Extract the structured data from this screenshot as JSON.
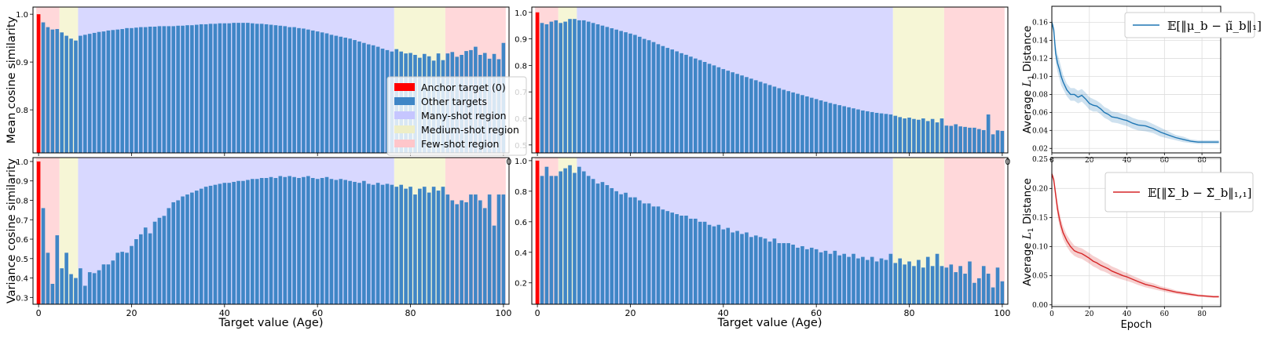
{
  "colors": {
    "bar": "#3f86c6",
    "anchor": "#ff0000",
    "many_shot": "#d8d8ff",
    "medium_shot": "#f6f6d6",
    "few_shot": "#ffd8da",
    "mean_line": "#1f77b4",
    "var_line": "#d62728"
  },
  "chart_data": [
    {
      "id": "mean-age",
      "type": "bar",
      "ylabel": "Mean cosine similarity",
      "xlabel": "",
      "ylim": [
        0.71,
        1.015
      ],
      "yticks": [
        0.8,
        0.9,
        1.0
      ],
      "xticks": [
        0,
        20,
        40,
        60,
        80,
        100
      ],
      "regions": [
        {
          "kind": "few",
          "from": -0.5,
          "to": 4.5
        },
        {
          "kind": "medium",
          "from": 4.5,
          "to": 8.5
        },
        {
          "kind": "many",
          "from": 8.5,
          "to": 76.5
        },
        {
          "kind": "medium",
          "from": 76.5,
          "to": 87.5
        },
        {
          "kind": "few",
          "from": 87.5,
          "to": 100.5
        }
      ],
      "values": [
        1.0,
        0.983,
        0.973,
        0.968,
        0.969,
        0.962,
        0.955,
        0.949,
        0.945,
        0.955,
        0.957,
        0.959,
        0.961,
        0.963,
        0.964,
        0.966,
        0.967,
        0.968,
        0.969,
        0.971,
        0.971,
        0.972,
        0.973,
        0.973,
        0.974,
        0.974,
        0.975,
        0.975,
        0.975,
        0.975,
        0.976,
        0.976,
        0.977,
        0.977,
        0.978,
        0.979,
        0.979,
        0.98,
        0.98,
        0.981,
        0.981,
        0.981,
        0.982,
        0.982,
        0.982,
        0.982,
        0.981,
        0.98,
        0.98,
        0.979,
        0.978,
        0.977,
        0.976,
        0.975,
        0.973,
        0.973,
        0.971,
        0.97,
        0.968,
        0.966,
        0.964,
        0.962,
        0.96,
        0.957,
        0.955,
        0.953,
        0.951,
        0.949,
        0.946,
        0.943,
        0.94,
        0.937,
        0.935,
        0.932,
        0.928,
        0.925,
        0.922,
        0.927,
        0.922,
        0.918,
        0.919,
        0.915,
        0.909,
        0.917,
        0.912,
        0.903,
        0.918,
        0.904,
        0.918,
        0.921,
        0.911,
        0.915,
        0.923,
        0.925,
        0.932,
        0.915,
        0.919,
        0.907,
        0.917,
        0.906,
        0.94
      ]
    },
    {
      "id": "mean-age-2",
      "type": "bar",
      "ylabel": "",
      "xlabel": "",
      "ylim": [
        0.47,
        1.02
      ],
      "yticks": [
        0.5,
        0.6,
        0.7,
        0.8,
        0.9,
        1.0
      ],
      "xticks": [
        0,
        20,
        40,
        60,
        80,
        100
      ],
      "regions": [
        {
          "kind": "few",
          "from": -0.5,
          "to": 4.5
        },
        {
          "kind": "medium",
          "from": 4.5,
          "to": 8.5
        },
        {
          "kind": "many",
          "from": 8.5,
          "to": 76.5
        },
        {
          "kind": "medium",
          "from": 76.5,
          "to": 87.5
        },
        {
          "kind": "few",
          "from": 87.5,
          "to": 100.5
        }
      ],
      "values": [
        1.0,
        0.96,
        0.955,
        0.965,
        0.97,
        0.96,
        0.965,
        0.975,
        0.975,
        0.97,
        0.97,
        0.965,
        0.96,
        0.955,
        0.95,
        0.945,
        0.94,
        0.935,
        0.93,
        0.925,
        0.92,
        0.915,
        0.908,
        0.9,
        0.895,
        0.888,
        0.88,
        0.873,
        0.866,
        0.86,
        0.853,
        0.846,
        0.84,
        0.833,
        0.826,
        0.82,
        0.813,
        0.806,
        0.8,
        0.793,
        0.786,
        0.78,
        0.774,
        0.768,
        0.762,
        0.756,
        0.75,
        0.744,
        0.738,
        0.732,
        0.726,
        0.72,
        0.714,
        0.708,
        0.703,
        0.698,
        0.693,
        0.688,
        0.683,
        0.678,
        0.673,
        0.668,
        0.663,
        0.658,
        0.654,
        0.65,
        0.646,
        0.642,
        0.638,
        0.634,
        0.63,
        0.627,
        0.624,
        0.621,
        0.619,
        0.617,
        0.615,
        0.61,
        0.605,
        0.6,
        0.603,
        0.598,
        0.595,
        0.6,
        0.59,
        0.598,
        0.585,
        0.6,
        0.573,
        0.572,
        0.578,
        0.57,
        0.568,
        0.565,
        0.565,
        0.56,
        0.556,
        0.615,
        0.54,
        0.555,
        0.553
      ]
    },
    {
      "id": "var-age",
      "type": "bar",
      "ylabel": "Variance cosine similarity",
      "xlabel": "Target value (Age)",
      "ylim": [
        0.265,
        1.02
      ],
      "yticks": [
        0.3,
        0.4,
        0.5,
        0.6,
        0.7,
        0.8,
        0.9,
        1.0
      ],
      "xticks": [
        0,
        20,
        40,
        60,
        80,
        100
      ],
      "regions": [
        {
          "kind": "few",
          "from": -0.5,
          "to": 4.5
        },
        {
          "kind": "medium",
          "from": 4.5,
          "to": 8.5
        },
        {
          "kind": "many",
          "from": 8.5,
          "to": 76.5
        },
        {
          "kind": "medium",
          "from": 76.5,
          "to": 87.5
        },
        {
          "kind": "few",
          "from": 87.5,
          "to": 100.5
        }
      ],
      "values": [
        1.0,
        0.76,
        0.53,
        0.37,
        0.62,
        0.45,
        0.53,
        0.42,
        0.4,
        0.45,
        0.36,
        0.43,
        0.425,
        0.44,
        0.47,
        0.47,
        0.49,
        0.53,
        0.535,
        0.53,
        0.565,
        0.6,
        0.625,
        0.66,
        0.63,
        0.69,
        0.71,
        0.72,
        0.76,
        0.79,
        0.8,
        0.82,
        0.83,
        0.84,
        0.85,
        0.86,
        0.87,
        0.875,
        0.88,
        0.885,
        0.89,
        0.89,
        0.895,
        0.9,
        0.9,
        0.905,
        0.91,
        0.91,
        0.915,
        0.915,
        0.92,
        0.915,
        0.925,
        0.92,
        0.925,
        0.92,
        0.915,
        0.92,
        0.925,
        0.915,
        0.91,
        0.915,
        0.92,
        0.91,
        0.905,
        0.91,
        0.905,
        0.9,
        0.895,
        0.89,
        0.9,
        0.885,
        0.88,
        0.89,
        0.88,
        0.885,
        0.88,
        0.87,
        0.88,
        0.86,
        0.87,
        0.83,
        0.86,
        0.87,
        0.84,
        0.87,
        0.85,
        0.87,
        0.83,
        0.8,
        0.78,
        0.8,
        0.79,
        0.83,
        0.83,
        0.8,
        0.76,
        0.83,
        0.67,
        0.83,
        0.83
      ]
    },
    {
      "id": "var-age-2",
      "type": "bar",
      "ylabel": "",
      "xlabel": "Target value (Age)",
      "ylim": [
        0.06,
        1.02
      ],
      "yticks": [
        0.2,
        0.4,
        0.6,
        0.8,
        1.0
      ],
      "xticks": [
        0,
        20,
        40,
        60,
        80,
        100
      ],
      "regions": [
        {
          "kind": "few",
          "from": -0.5,
          "to": 4.5
        },
        {
          "kind": "medium",
          "from": 4.5,
          "to": 8.5
        },
        {
          "kind": "many",
          "from": 8.5,
          "to": 76.5
        },
        {
          "kind": "medium",
          "from": 76.5,
          "to": 87.5
        },
        {
          "kind": "few",
          "from": 87.5,
          "to": 100.5
        }
      ],
      "values": [
        1.0,
        0.9,
        0.96,
        0.9,
        0.9,
        0.93,
        0.95,
        0.97,
        0.92,
        0.96,
        0.93,
        0.9,
        0.88,
        0.85,
        0.86,
        0.84,
        0.82,
        0.8,
        0.78,
        0.79,
        0.76,
        0.76,
        0.74,
        0.72,
        0.72,
        0.7,
        0.7,
        0.68,
        0.67,
        0.66,
        0.65,
        0.64,
        0.64,
        0.62,
        0.62,
        0.6,
        0.6,
        0.58,
        0.57,
        0.58,
        0.55,
        0.56,
        0.53,
        0.54,
        0.52,
        0.53,
        0.5,
        0.51,
        0.5,
        0.49,
        0.47,
        0.49,
        0.46,
        0.46,
        0.46,
        0.45,
        0.43,
        0.44,
        0.42,
        0.43,
        0.42,
        0.4,
        0.41,
        0.39,
        0.41,
        0.38,
        0.39,
        0.37,
        0.39,
        0.36,
        0.37,
        0.35,
        0.37,
        0.34,
        0.36,
        0.35,
        0.39,
        0.33,
        0.36,
        0.32,
        0.34,
        0.31,
        0.35,
        0.3,
        0.37,
        0.31,
        0.39,
        0.31,
        0.3,
        0.32,
        0.27,
        0.31,
        0.26,
        0.34,
        0.2,
        0.23,
        0.31,
        0.26,
        0.17,
        0.3,
        0.21
      ]
    },
    {
      "id": "mean-dist",
      "type": "line",
      "xlabel": "",
      "ylabel": "Average L1 Distance",
      "ylabel_parts": {
        "prefix": "Average ",
        "symbol": "L",
        "sub": "1",
        "suffix": " Distance"
      },
      "xlim": [
        0,
        90
      ],
      "ylim": [
        0.015,
        0.178
      ],
      "yticks": [
        0.02,
        0.04,
        0.06,
        0.08,
        0.1,
        0.12,
        0.14,
        0.16
      ],
      "xticks": [
        0,
        20,
        40,
        60,
        80
      ],
      "legend": "𝔼[‖μ_b − μ̃_b‖₁]",
      "series": [
        {
          "x": [
            0,
            1,
            2,
            3,
            4,
            5,
            6,
            8,
            10,
            12,
            14,
            16,
            18,
            20,
            22,
            24,
            26,
            28,
            30,
            32,
            35,
            38,
            40,
            43,
            46,
            50,
            54,
            58,
            62,
            66,
            70,
            74,
            78,
            82,
            86,
            89
          ],
          "y": [
            0.16,
            0.152,
            0.126,
            0.115,
            0.108,
            0.1,
            0.094,
            0.085,
            0.08,
            0.08,
            0.077,
            0.079,
            0.075,
            0.07,
            0.068,
            0.067,
            0.064,
            0.06,
            0.058,
            0.055,
            0.054,
            0.052,
            0.051,
            0.048,
            0.046,
            0.045,
            0.042,
            0.038,
            0.035,
            0.032,
            0.03,
            0.028,
            0.027,
            0.027,
            0.027,
            0.027
          ],
          "band": [
            0.004,
            0.005,
            0.009,
            0.01,
            0.01,
            0.01,
            0.008,
            0.007,
            0.007,
            0.007,
            0.007,
            0.007,
            0.007,
            0.007,
            0.007,
            0.006,
            0.006,
            0.006,
            0.006,
            0.006,
            0.006,
            0.006,
            0.006,
            0.006,
            0.006,
            0.006,
            0.005,
            0.005,
            0.004,
            0.003,
            0.003,
            0.002,
            0.002,
            0.002,
            0.002,
            0.002
          ]
        }
      ]
    },
    {
      "id": "var-dist",
      "type": "line",
      "xlabel": "Epoch",
      "ylabel": "Average L1 Distance",
      "ylabel_parts": {
        "prefix": "Average ",
        "symbol": "L",
        "sub": "1",
        "suffix": " Distance"
      },
      "xlim": [
        0,
        90
      ],
      "ylim": [
        -0.003,
        0.253
      ],
      "yticks": [
        0.0,
        0.05,
        0.1,
        0.15,
        0.2,
        0.25
      ],
      "xticks": [
        0,
        20,
        40,
        60,
        80
      ],
      "legend": "𝔼[‖Σ_b − Σ̃_b‖₁,₁]",
      "series": [
        {
          "x": [
            0,
            1,
            2,
            3,
            4,
            5,
            6,
            8,
            10,
            12,
            14,
            16,
            18,
            20,
            22,
            24,
            26,
            28,
            30,
            32,
            35,
            38,
            40,
            43,
            46,
            50,
            54,
            58,
            62,
            66,
            70,
            74,
            78,
            82,
            86,
            89
          ],
          "y": [
            0.225,
            0.215,
            0.19,
            0.165,
            0.148,
            0.135,
            0.124,
            0.11,
            0.1,
            0.093,
            0.09,
            0.088,
            0.084,
            0.08,
            0.075,
            0.072,
            0.068,
            0.065,
            0.062,
            0.058,
            0.054,
            0.05,
            0.048,
            0.044,
            0.04,
            0.035,
            0.032,
            0.028,
            0.025,
            0.022,
            0.02,
            0.018,
            0.016,
            0.015,
            0.014,
            0.014
          ],
          "band": [
            0.004,
            0.006,
            0.01,
            0.012,
            0.012,
            0.011,
            0.011,
            0.01,
            0.01,
            0.009,
            0.009,
            0.009,
            0.009,
            0.009,
            0.009,
            0.009,
            0.009,
            0.008,
            0.008,
            0.008,
            0.008,
            0.007,
            0.007,
            0.006,
            0.006,
            0.005,
            0.005,
            0.004,
            0.004,
            0.003,
            0.003,
            0.003,
            0.002,
            0.002,
            0.002,
            0.002
          ]
        }
      ]
    }
  ],
  "legend": {
    "items": [
      {
        "key": "anchor",
        "label": "Anchor target (0)"
      },
      {
        "key": "bar",
        "label": "Other targets"
      },
      {
        "key": "many_shot",
        "label": "Many-shot region"
      },
      {
        "key": "medium_shot",
        "label": "Medium-shot region"
      },
      {
        "key": "few_shot",
        "label": "Few-shot region"
      }
    ]
  }
}
